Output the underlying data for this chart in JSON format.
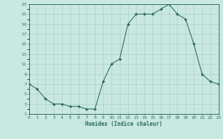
{
  "x": [
    0,
    1,
    2,
    3,
    4,
    5,
    6,
    7,
    8,
    9,
    10,
    11,
    12,
    13,
    14,
    15,
    16,
    17,
    18,
    19,
    20,
    21,
    22,
    23
  ],
  "y": [
    7,
    6,
    4,
    3,
    3,
    2.5,
    2.5,
    2,
    2,
    7.5,
    11,
    12,
    19,
    21,
    21,
    21,
    22,
    23,
    21,
    20,
    15,
    9,
    7.5,
    7
  ],
  "line_color": "#2d6b5e",
  "marker": "D",
  "marker_size": 2.0,
  "bg_color": "#c8e8e0",
  "grid_major_color": "#aacfc8",
  "grid_minor_color": "#bcddd6",
  "xlabel": "Humidex (Indice chaleur)",
  "xlim": [
    0,
    23
  ],
  "ylim": [
    1,
    23
  ],
  "ytick_labels": [
    "1",
    "3",
    "5",
    "7",
    "9",
    "11",
    "13",
    "15",
    "17",
    "19",
    "21",
    "23"
  ],
  "ytick_vals": [
    1,
    3,
    5,
    7,
    9,
    11,
    13,
    15,
    17,
    19,
    21,
    23
  ],
  "xtick_vals": [
    0,
    1,
    2,
    3,
    4,
    5,
    6,
    7,
    8,
    9,
    10,
    11,
    12,
    13,
    14,
    15,
    16,
    17,
    18,
    19,
    20,
    21,
    22,
    23
  ],
  "xtick_labels": [
    "0",
    "1",
    "2",
    "3",
    "4",
    "5",
    "6",
    "7",
    "8",
    "9",
    "10",
    "11",
    "12",
    "13",
    "14",
    "15",
    "16",
    "17",
    "18",
    "19",
    "20",
    "21",
    "22",
    "23"
  ],
  "figsize": [
    3.2,
    2.0
  ],
  "dpi": 100
}
